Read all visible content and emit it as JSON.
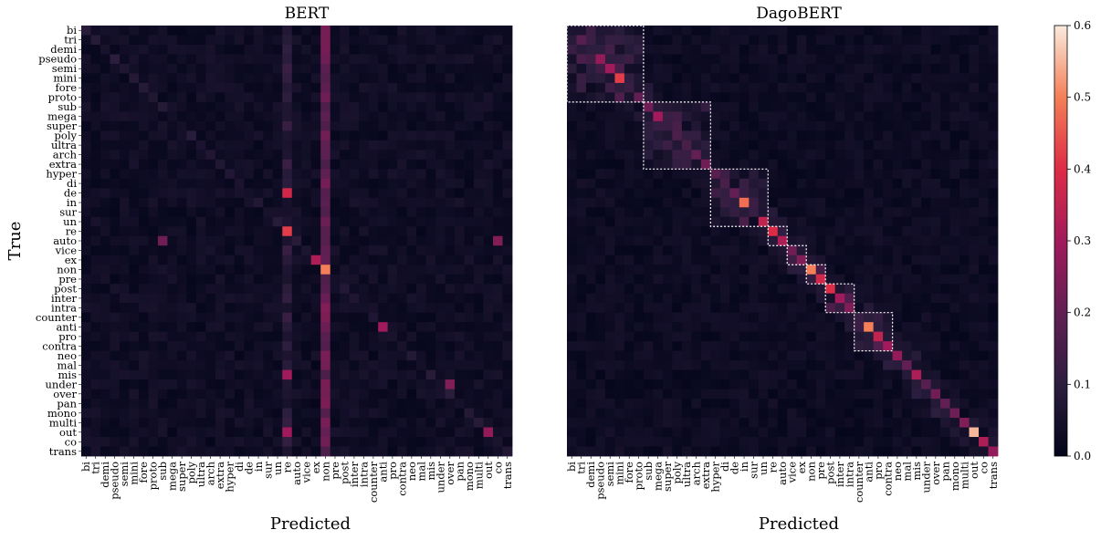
{
  "chart_data": [
    {
      "type": "heatmap",
      "title": "BERT",
      "xlabel": "Predicted",
      "ylabel": "True",
      "vmin": 0,
      "vmax": 0.6,
      "grid": false,
      "dominant_predicted_columns": [
        "re",
        "non"
      ],
      "highlighted_cells": [
        {
          "true": "de",
          "predicted": "re",
          "value": 0.38
        },
        {
          "true": "re",
          "predicted": "re",
          "value": 0.42
        },
        {
          "true": "non",
          "predicted": "non",
          "value": 0.5
        },
        {
          "true": "ex",
          "predicted": "ex",
          "value": 0.32
        },
        {
          "true": "anti",
          "predicted": "anti",
          "value": 0.3
        },
        {
          "true": "mis",
          "predicted": "re",
          "value": 0.3
        },
        {
          "true": "out",
          "predicted": "re",
          "value": 0.3
        },
        {
          "true": "under",
          "predicted": "over",
          "value": 0.25
        },
        {
          "true": "out",
          "predicted": "out",
          "value": 0.28
        },
        {
          "true": "auto",
          "predicted": "co",
          "value": 0.25
        },
        {
          "true": "auto",
          "predicted": "sub",
          "value": 0.22
        }
      ]
    },
    {
      "type": "heatmap",
      "title": "DagoBERT",
      "xlabel": "Predicted",
      "ylabel": "",
      "vmin": 0,
      "vmax": 0.6,
      "grid": false,
      "diagonal_values": [
        0.06,
        0.18,
        0.1,
        0.28,
        0.3,
        0.42,
        0.12,
        0.2,
        0.22,
        0.3,
        0.12,
        0.16,
        0.15,
        0.2,
        0.22,
        0.18,
        0.15,
        0.2,
        0.48,
        0.12,
        0.35,
        0.4,
        0.32,
        0.22,
        0.25,
        0.5,
        0.38,
        0.4,
        0.3,
        0.25,
        0.12,
        0.5,
        0.35,
        0.3,
        0.28,
        0.2,
        0.32,
        0.18,
        0.22,
        0.2,
        0.22,
        0.25,
        0.55,
        0.32,
        0.28
      ],
      "blocks": [
        [
          0,
          8
        ],
        [
          8,
          15
        ],
        [
          15,
          21
        ],
        [
          21,
          23
        ],
        [
          23,
          25
        ],
        [
          25,
          27
        ],
        [
          27,
          30
        ],
        [
          30,
          34
        ]
      ]
    }
  ],
  "labels": [
    "bi",
    "tri",
    "demi",
    "pseudo",
    "semi",
    "mini",
    "fore",
    "proto",
    "sub",
    "mega",
    "super",
    "poly",
    "ultra",
    "arch",
    "extra",
    "hyper",
    "di",
    "de",
    "in",
    "sur",
    "un",
    "re",
    "auto",
    "vice",
    "ex",
    "non",
    "pre",
    "post",
    "inter",
    "intra",
    "counter",
    "anti",
    "pro",
    "contra",
    "neo",
    "mal",
    "mis",
    "under",
    "over",
    "pan",
    "mono",
    "multi",
    "out",
    "co",
    "trans"
  ],
  "colorbar": {
    "ticks": [
      "0.0",
      "0.1",
      "0.2",
      "0.3",
      "0.4",
      "0.5",
      "0.6"
    ],
    "colors": [
      "#03051a",
      "#2c1e3e",
      "#611f53",
      "#a11a5b",
      "#dd2c45",
      "#f47f58",
      "#faebdd"
    ]
  }
}
